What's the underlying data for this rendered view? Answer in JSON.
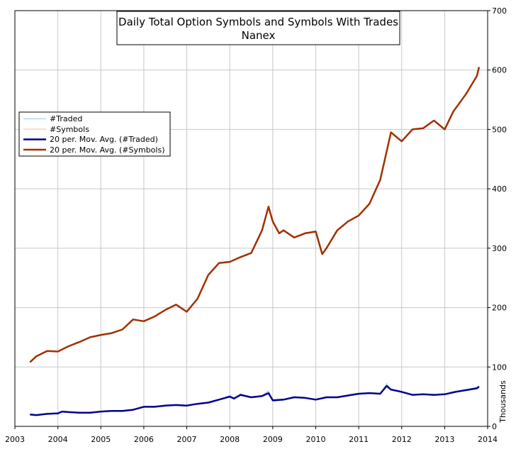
{
  "chart_data": {
    "type": "line",
    "title": "Daily Total Option Symbols and Symbols With Trades",
    "subtitle": "Nanex",
    "ylabel": "Thousands",
    "xlim": [
      2003,
      2014
    ],
    "ylim": [
      0,
      700
    ],
    "x_ticks": [
      "2003",
      "2004",
      "2005",
      "2006",
      "2007",
      "2008",
      "2009",
      "2010",
      "2011",
      "2012",
      "2013",
      "2014"
    ],
    "y_ticks": [
      "0",
      "100",
      "200",
      "300",
      "400",
      "500",
      "600",
      "700"
    ],
    "grid": true,
    "legend_position": "left",
    "colors": {
      "traded_daily": "#9cc8f0",
      "symbols_daily": "#f7c08a",
      "traded_ma": "#000090",
      "symbols_ma": "#a03000"
    },
    "series": [
      {
        "name": "#Traded",
        "x": [
          2003.35,
          2003.5,
          2003.7,
          2003.85,
          2004.0,
          2004.1,
          2004.25,
          2004.5,
          2004.75,
          2005.0,
          2005.25,
          2005.5,
          2005.75,
          2006.0,
          2006.25,
          2006.5,
          2006.75,
          2007.0,
          2007.25,
          2007.5,
          2007.75,
          2008.0,
          2008.1,
          2008.25,
          2008.5,
          2008.75,
          2008.9,
          2009.0,
          2009.25,
          2009.5,
          2009.75,
          2010.0,
          2010.25,
          2010.5,
          2010.75,
          2011.0,
          2011.25,
          2011.5,
          2011.65,
          2011.75,
          2012.0,
          2012.25,
          2012.5,
          2012.75,
          2013.0,
          2013.25,
          2013.5,
          2013.75,
          2013.8
        ],
        "values": [
          20,
          18,
          20,
          22,
          20,
          25,
          24,
          22,
          23,
          25,
          26,
          25,
          28,
          33,
          32,
          35,
          36,
          34,
          38,
          40,
          45,
          52,
          45,
          55,
          48,
          52,
          60,
          42,
          44,
          50,
          48,
          44,
          50,
          48,
          52,
          55,
          56,
          54,
          72,
          62,
          58,
          52,
          55,
          52,
          55,
          58,
          62,
          66,
          68
        ]
      },
      {
        "name": "#Symbols",
        "x": [
          2003.35,
          2003.5,
          2003.75,
          2004.0,
          2004.25,
          2004.5,
          2004.75,
          2005.0,
          2005.25,
          2005.5,
          2005.75,
          2006.0,
          2006.25,
          2006.5,
          2006.75,
          2007.0,
          2007.25,
          2007.5,
          2007.75,
          2008.0,
          2008.25,
          2008.5,
          2008.75,
          2008.9,
          2009.0,
          2009.15,
          2009.25,
          2009.5,
          2009.75,
          2010.0,
          2010.15,
          2010.25,
          2010.5,
          2010.75,
          2011.0,
          2011.25,
          2011.5,
          2011.75,
          2012.0,
          2012.25,
          2012.5,
          2012.75,
          2013.0,
          2013.2,
          2013.5,
          2013.75,
          2013.8
        ],
        "values": [
          108,
          118,
          127,
          126,
          135,
          142,
          150,
          154,
          157,
          163,
          180,
          177,
          185,
          196,
          205,
          193,
          215,
          255,
          275,
          277,
          285,
          292,
          330,
          370,
          345,
          325,
          330,
          318,
          325,
          328,
          290,
          300,
          330,
          345,
          355,
          375,
          415,
          495,
          480,
          500,
          502,
          515,
          500,
          530,
          560,
          590,
          605
        ]
      },
      {
        "name": "20 per. Mov. Avg. (#Traded)",
        "x": [
          2003.35,
          2003.5,
          2003.75,
          2004.0,
          2004.1,
          2004.25,
          2004.5,
          2004.75,
          2005.0,
          2005.25,
          2005.5,
          2005.75,
          2006.0,
          2006.25,
          2006.5,
          2006.75,
          2007.0,
          2007.25,
          2007.5,
          2007.75,
          2008.0,
          2008.1,
          2008.25,
          2008.5,
          2008.75,
          2008.9,
          2009.0,
          2009.25,
          2009.5,
          2009.75,
          2010.0,
          2010.25,
          2010.5,
          2010.75,
          2011.0,
          2011.25,
          2011.5,
          2011.65,
          2011.75,
          2012.0,
          2012.25,
          2012.5,
          2012.75,
          2013.0,
          2013.25,
          2013.5,
          2013.75,
          2013.8
        ],
        "values": [
          20,
          19,
          21,
          22,
          25,
          24,
          23,
          23,
          25,
          26,
          26,
          28,
          33,
          33,
          35,
          36,
          35,
          38,
          40,
          45,
          50,
          47,
          53,
          49,
          51,
          56,
          44,
          45,
          49,
          48,
          45,
          49,
          49,
          52,
          55,
          56,
          55,
          68,
          62,
          58,
          53,
          54,
          53,
          54,
          58,
          61,
          64,
          67
        ]
      },
      {
        "name": "20 per. Mov. Avg. (#Symbols)",
        "x": [
          2003.35,
          2003.5,
          2003.75,
          2004.0,
          2004.25,
          2004.5,
          2004.75,
          2005.0,
          2005.25,
          2005.5,
          2005.75,
          2006.0,
          2006.25,
          2006.5,
          2006.75,
          2007.0,
          2007.25,
          2007.5,
          2007.75,
          2008.0,
          2008.25,
          2008.5,
          2008.75,
          2008.9,
          2009.0,
          2009.15,
          2009.25,
          2009.5,
          2009.75,
          2010.0,
          2010.15,
          2010.25,
          2010.5,
          2010.75,
          2011.0,
          2011.25,
          2011.5,
          2011.75,
          2012.0,
          2012.25,
          2012.5,
          2012.75,
          2013.0,
          2013.2,
          2013.5,
          2013.75,
          2013.8
        ],
        "values": [
          108,
          118,
          127,
          126,
          135,
          142,
          150,
          154,
          157,
          163,
          180,
          177,
          185,
          196,
          205,
          193,
          215,
          255,
          275,
          277,
          285,
          292,
          330,
          370,
          345,
          325,
          330,
          318,
          325,
          328,
          290,
          300,
          330,
          345,
          355,
          375,
          415,
          495,
          480,
          500,
          502,
          515,
          500,
          530,
          560,
          590,
          605
        ]
      }
    ]
  }
}
